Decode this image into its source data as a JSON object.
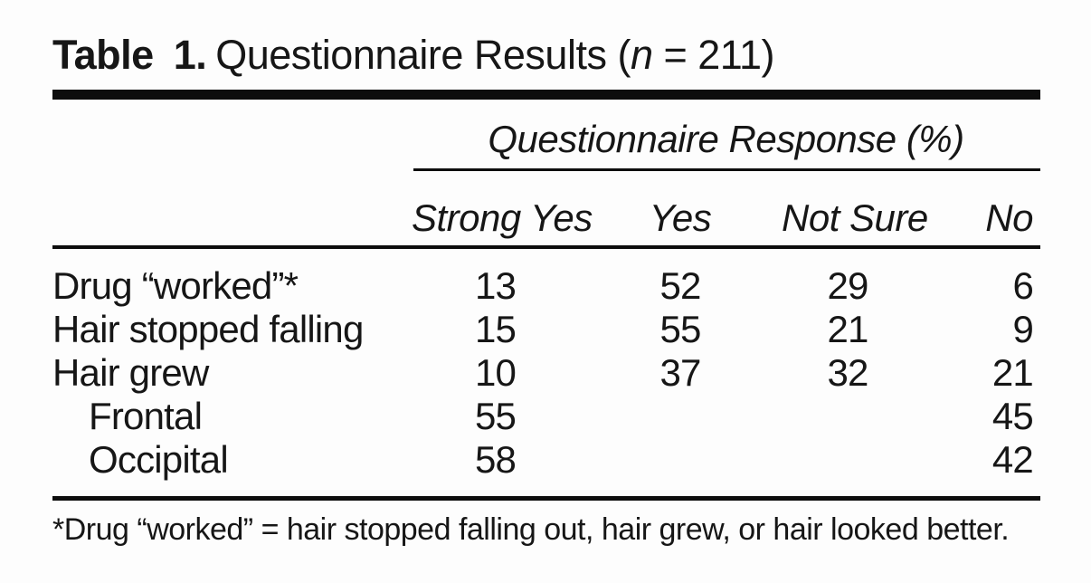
{
  "page": {
    "background": "#fdfdfd",
    "text_color": "#161616",
    "rule_color": "#0d0d0d"
  },
  "table": {
    "title": {
      "bold_label": "Table 1.",
      "main_prefix": "Questionnaire Results (",
      "n_symbol": "n",
      "main_suffix": " = 211)"
    },
    "sample_size": 211,
    "spanner": "Questionnaire Response (%)",
    "columns": [
      "Strong Yes",
      "Yes",
      "Not Sure",
      "No"
    ],
    "rows": [
      {
        "label": "Drug “worked”*",
        "indent": false,
        "values": [
          "13",
          "52",
          "29",
          "6"
        ]
      },
      {
        "label": "Hair stopped falling",
        "indent": false,
        "values": [
          "15",
          "55",
          "21",
          "9"
        ]
      },
      {
        "label": "Hair grew",
        "indent": false,
        "values": [
          "10",
          "37",
          "32",
          "21"
        ]
      },
      {
        "label": "Frontal",
        "indent": true,
        "values": [
          "55",
          "",
          "",
          "45"
        ]
      },
      {
        "label": "Occipital",
        "indent": true,
        "values": [
          "58",
          "",
          "",
          "42"
        ]
      }
    ],
    "footnote": "*Drug “worked” = hair stopped falling out, hair grew, or hair looked better."
  }
}
